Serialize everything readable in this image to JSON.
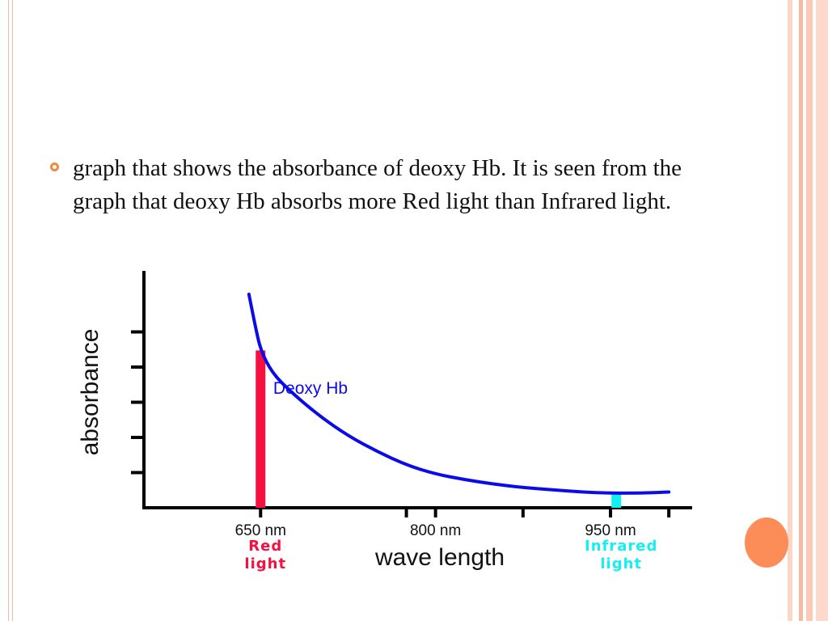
{
  "slide": {
    "bullet_text": "graph that shows the absorbance of deoxy Hb. It is seen from the graph that deoxy Hb absorbs more Red light than Infrared light.",
    "colors": {
      "accent": "#f08a3c",
      "frame": "#f3b9a3",
      "corner_circle": "#fd8d58"
    },
    "bullet_icon": "ring-bullet-icon"
  },
  "chart_data": {
    "type": "line",
    "title": "",
    "xlabel": "wave length",
    "ylabel": "absorbance",
    "x_ticks": [
      {
        "label": "650 nm",
        "value": 650
      },
      {
        "label": "800 nm",
        "value": 800
      },
      {
        "label": "950 nm",
        "value": 950
      }
    ],
    "xlim": [
      550,
      1020
    ],
    "ylim": [
      0,
      1
    ],
    "y_tick_count": 5,
    "grid": false,
    "series": [
      {
        "name": "Deoxy Hb",
        "color": "#0b0bea",
        "points": [
          [
            640,
            0.95
          ],
          [
            645,
            0.82
          ],
          [
            650,
            0.7
          ],
          [
            660,
            0.6
          ],
          [
            675,
            0.52
          ],
          [
            700,
            0.41
          ],
          [
            725,
            0.32
          ],
          [
            750,
            0.25
          ],
          [
            775,
            0.19
          ],
          [
            800,
            0.15
          ],
          [
            825,
            0.125
          ],
          [
            850,
            0.105
          ],
          [
            875,
            0.09
          ],
          [
            900,
            0.08
          ],
          [
            925,
            0.07
          ],
          [
            950,
            0.065
          ],
          [
            975,
            0.065
          ],
          [
            1000,
            0.07
          ]
        ]
      }
    ],
    "markers": [
      {
        "x": 650,
        "y": 0.7,
        "color": "#f5103f",
        "label_lines": [
          "Red",
          "light"
        ]
      },
      {
        "x": 955,
        "y": 0.065,
        "color": "#14efef",
        "label_lines": [
          "Infrared",
          "light"
        ]
      }
    ]
  }
}
